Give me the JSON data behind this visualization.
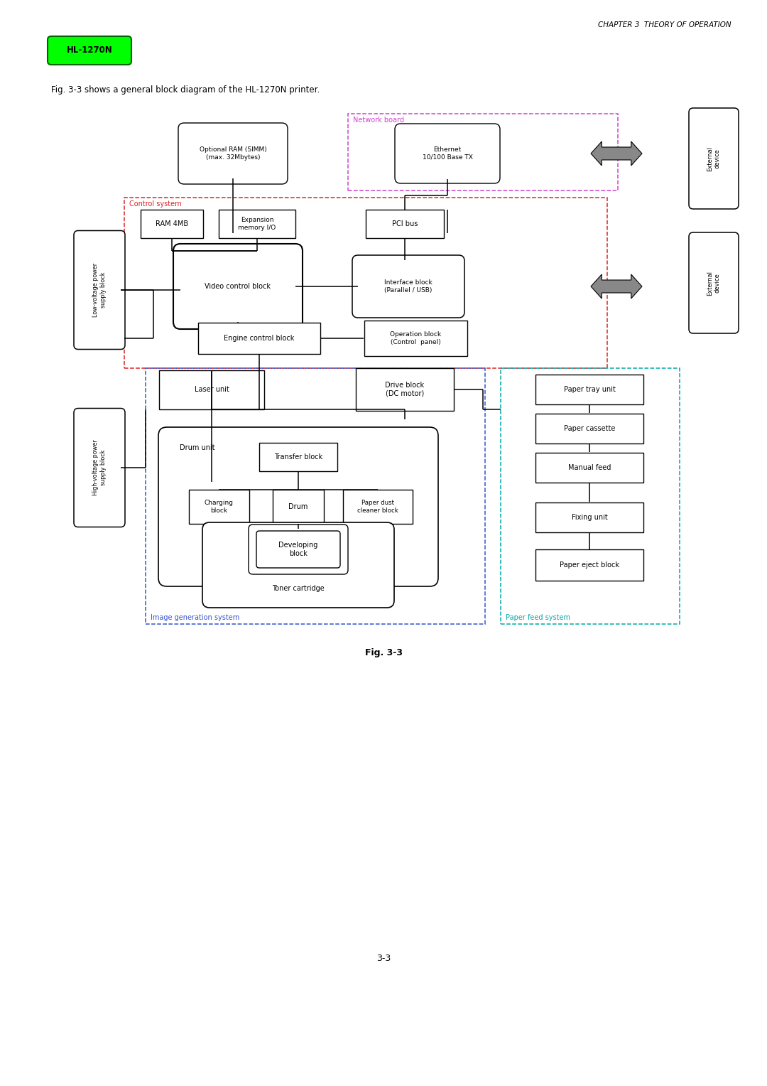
{
  "title_header": "CHAPTER 3  THEORY OF OPERATION",
  "badge_text": "HL-1270N",
  "badge_color": "#00FF00",
  "badge_text_color": "#000000",
  "subtitle": "Fig. 3-3 shows a general block diagram of the HL-1270N printer.",
  "fig_label": "Fig. 3-3",
  "page_number": "3-3",
  "background_color": "#ffffff",
  "network_board_color": "#CC44CC",
  "control_system_color": "#DD2222",
  "image_gen_color": "#3355CC",
  "paper_feed_color": "#00AAAA",
  "arrow_gray": "#888888"
}
